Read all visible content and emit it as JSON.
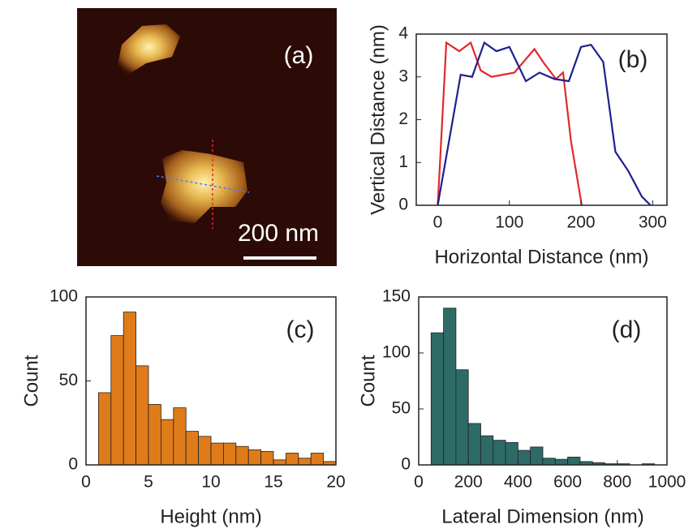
{
  "chart_data": [
    {
      "type": "image",
      "annotation": "(a)",
      "scale_bar": "200 nm"
    },
    {
      "type": "line",
      "annotation": "(b)",
      "xlabel": "Horizontal Distance (nm)",
      "ylabel": "Vertical Distance (nm)",
      "xlim": [
        -30,
        320
      ],
      "ylim": [
        0,
        4
      ],
      "xticks": [
        0,
        100,
        200,
        300
      ],
      "yticks": [
        0,
        1,
        2,
        3,
        4
      ],
      "series": [
        {
          "color": "#e0282d",
          "x": [
            0,
            12,
            30,
            46,
            60,
            75,
            91,
            107,
            135,
            147,
            165,
            175,
            186,
            201
          ],
          "values": [
            0,
            3.8,
            3.6,
            3.8,
            3.15,
            3.0,
            3.05,
            3.1,
            3.65,
            3.35,
            2.95,
            3.1,
            1.5,
            0
          ]
        },
        {
          "color": "#1f1f8f",
          "x": [
            0,
            32,
            48,
            65,
            82,
            100,
            123,
            142,
            163,
            183,
            200,
            214,
            231,
            248,
            266,
            285,
            297
          ],
          "values": [
            0,
            3.05,
            3.0,
            3.8,
            3.6,
            3.7,
            2.9,
            3.1,
            2.95,
            2.9,
            3.7,
            3.75,
            3.35,
            1.25,
            0.8,
            0.2,
            0
          ]
        }
      ]
    },
    {
      "type": "histogram",
      "annotation": "(c)",
      "xlabel": "Height (nm)",
      "ylabel": "Count",
      "color": "#e07b1a",
      "xlim": [
        0,
        20
      ],
      "ylim": [
        0,
        100
      ],
      "xticks": [
        0,
        5,
        10,
        15,
        20
      ],
      "yticks": [
        0,
        50,
        100
      ],
      "bins": [
        1,
        2,
        3,
        4,
        5,
        6,
        7,
        8,
        9,
        10,
        11,
        12,
        13,
        14,
        15,
        16,
        17,
        18,
        19,
        20
      ],
      "values": [
        43,
        77,
        91,
        59,
        36,
        27,
        34,
        20,
        17,
        13,
        13,
        11,
        9,
        8,
        3,
        7,
        4,
        7,
        2
      ]
    },
    {
      "type": "histogram",
      "annotation": "(d)",
      "xlabel": "Lateral Dimension (nm)",
      "ylabel": "Count",
      "color": "#2e6b66",
      "xlim": [
        0,
        1000
      ],
      "ylim": [
        0,
        150
      ],
      "xticks": [
        0,
        200,
        400,
        600,
        800,
        1000
      ],
      "yticks": [
        0,
        50,
        100,
        150
      ],
      "bins": [
        50,
        100,
        150,
        200,
        250,
        300,
        350,
        400,
        450,
        500,
        550,
        600,
        650,
        700,
        750,
        800,
        850,
        900,
        950
      ],
      "values": [
        118,
        140,
        85,
        37,
        26,
        22,
        20,
        13,
        16,
        6,
        5,
        7,
        3,
        2,
        1,
        1,
        0,
        1
      ]
    }
  ]
}
